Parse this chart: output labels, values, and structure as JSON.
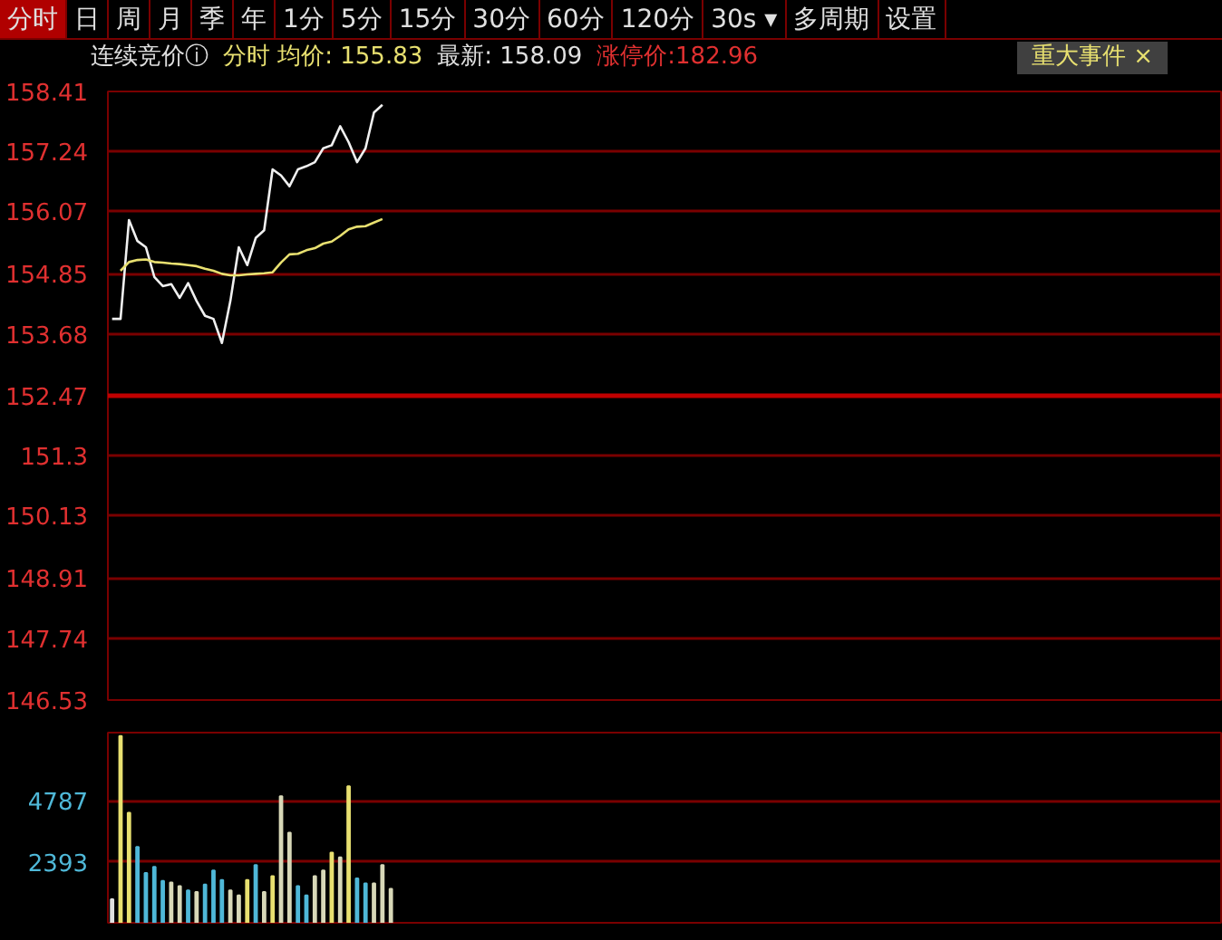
{
  "chart_data": [
    {
      "type": "line",
      "annotations": [
        "分时",
        "日",
        "周",
        "月",
        "季",
        "年",
        "1分",
        "5分",
        "15分",
        "30分",
        "60分",
        "120分",
        "30s ▾",
        "多周期",
        "设置",
        "连续竞价ⓘ",
        "分时 均价: 155.83",
        "最新: 158.09",
        "涨停价:182.96",
        "重大事件 ×"
      ],
      "categories": [
        null,
        null,
        null,
        null,
        null,
        null,
        null,
        null,
        null,
        null,
        null,
        null,
        null,
        null,
        null,
        null,
        null,
        null,
        null,
        null,
        null,
        null,
        null,
        null,
        null,
        null,
        null,
        null,
        null,
        null,
        null,
        null,
        null,
        null,
        null,
        null,
        null,
        null,
        null,
        null,
        null,
        null,
        null,
        null,
        null,
        null,
        null,
        null,
        null,
        null,
        null,
        null,
        null,
        null,
        null,
        null,
        null,
        null,
        null,
        null,
        null,
        null,
        null,
        null,
        null,
        null,
        null,
        null,
        null,
        null,
        null,
        null,
        null,
        null,
        null,
        null,
        null,
        null,
        null,
        null,
        null,
        null,
        null,
        null,
        null,
        null,
        null,
        null,
        null,
        null,
        null,
        null,
        null,
        null,
        null,
        null,
        null,
        null,
        null,
        null,
        null,
        null,
        null,
        null,
        null,
        null,
        null,
        null,
        null,
        null,
        null,
        null,
        null,
        null,
        null,
        null,
        null,
        null,
        null,
        null,
        null,
        null,
        null,
        null,
        null,
        null,
        null,
        null,
        null,
        null,
        null,
        null
      ],
      "series": [
        {
          "color": "#f0f0f0",
          "values": [
            153.97,
            153.97,
            155.9,
            155.49,
            155.37,
            154.79,
            154.61,
            154.65,
            154.38,
            154.67,
            154.32,
            154.03,
            153.97,
            153.5,
            154.32,
            155.37,
            155.02,
            155.55,
            155.7,
            156.89,
            156.77,
            156.56,
            156.89,
            156.95,
            157.03,
            157.3,
            157.36,
            157.73,
            157.42,
            157.03,
            157.3,
            158.0,
            158.15,
            null,
            null,
            null,
            null,
            null,
            null,
            null,
            null,
            null,
            null,
            null,
            null,
            null,
            null,
            null,
            null,
            null,
            null,
            null,
            null,
            null,
            null,
            null,
            null,
            null,
            null,
            null,
            null,
            null,
            null,
            null,
            null,
            null,
            null,
            null,
            null,
            null,
            null,
            null,
            null,
            null,
            null,
            null,
            null,
            null,
            null,
            null,
            null,
            null,
            null,
            null,
            null,
            null,
            null,
            null,
            null,
            null,
            null,
            null,
            null,
            null,
            null,
            null,
            null,
            null,
            null,
            null,
            null,
            null,
            null,
            null,
            null,
            null,
            null,
            null,
            null,
            null,
            null,
            null,
            null,
            null,
            null,
            null,
            null,
            null,
            null,
            null,
            null,
            null,
            null,
            null,
            null,
            null,
            null,
            null,
            null,
            null,
            null,
            null
          ]
        },
        {
          "color": "#e8e070",
          "values": [
            null,
            154.91,
            155.08,
            155.12,
            155.13,
            155.08,
            155.07,
            155.05,
            155.04,
            155.02,
            155.0,
            154.95,
            154.91,
            154.85,
            154.82,
            154.82,
            154.84,
            154.85,
            154.86,
            154.88,
            155.07,
            155.23,
            155.24,
            155.31,
            155.35,
            155.44,
            155.48,
            155.59,
            155.72,
            155.77,
            155.78,
            155.85,
            155.92,
            null,
            null,
            null,
            null,
            null,
            null,
            null,
            null,
            null,
            null,
            null,
            null,
            null,
            null,
            null,
            null,
            null,
            null,
            null,
            null,
            null,
            null,
            null,
            null,
            null,
            null,
            null,
            null,
            null,
            null,
            null,
            null,
            null,
            null,
            null,
            null,
            null,
            null,
            null,
            null,
            null,
            null,
            null,
            null,
            null,
            null,
            null,
            null,
            null,
            null,
            null,
            null,
            null,
            null,
            null,
            null,
            null,
            null,
            null,
            null,
            null,
            null,
            null,
            null,
            null,
            null,
            null,
            null,
            null,
            null,
            null,
            null,
            null,
            null,
            null,
            null,
            null,
            null,
            null,
            null,
            null,
            null,
            null,
            null,
            null,
            null,
            null,
            null,
            null,
            null,
            null,
            null,
            null,
            null,
            null,
            null,
            null,
            null,
            null
          ]
        }
      ],
      "ylim": [
        146.53,
        158.41
      ],
      "yticks": [
        146.53,
        147.74,
        148.91,
        150.13,
        151.3,
        152.47,
        153.68,
        154.85,
        156.07,
        157.24,
        158.41
      ],
      "ref_lines": [
        {
          "axis": "y",
          "value": 152.47,
          "color": "#c00000",
          "line_style": "solid"
        }
      ],
      "grid": "y",
      "tick_labels": "y",
      "line_style": "solid"
    },
    {
      "type": "bar",
      "categories": [
        null,
        null,
        null,
        null,
        null,
        null,
        null,
        null,
        null,
        null,
        null,
        null,
        null,
        null,
        null,
        null,
        null,
        null,
        null,
        null,
        null,
        null,
        null,
        null,
        null,
        null,
        null,
        null,
        null,
        null,
        null,
        null,
        null,
        null,
        null,
        null,
        null,
        null,
        null,
        null,
        null,
        null,
        null,
        null,
        null,
        null,
        null,
        null,
        null,
        null,
        null,
        null,
        null,
        null,
        null,
        null,
        null,
        null,
        null,
        null,
        null,
        null,
        null,
        null,
        null,
        null,
        null,
        null,
        null,
        null,
        null,
        null,
        null,
        null,
        null,
        null,
        null,
        null,
        null,
        null,
        null,
        null,
        null,
        null,
        null,
        null,
        null,
        null,
        null,
        null,
        null,
        null,
        null,
        null,
        null,
        null,
        null,
        null,
        null,
        null,
        null,
        null,
        null,
        null,
        null,
        null,
        null,
        null,
        null,
        null,
        null,
        null,
        null,
        null,
        null,
        null,
        null,
        null,
        null,
        null,
        null,
        null,
        null,
        null,
        null,
        null,
        null,
        null,
        null,
        null,
        null,
        null
      ],
      "values": [
        920,
        7320,
        4310,
        2970,
        1950,
        2190,
        1640,
        1580,
        1440,
        1270,
        1210,
        1500,
        2050,
        1680,
        1270,
        1070,
        1680,
        2260,
        1210,
        1830,
        4960,
        3530,
        1440,
        1070,
        1830,
        2050,
        2750,
        2560,
        5350,
        1740,
        1540,
        1540,
        2260,
        1330,
        null,
        null,
        null,
        null,
        null,
        null,
        null,
        null,
        null,
        null,
        null,
        null,
        null,
        null,
        null,
        null,
        null,
        null,
        null,
        null,
        null,
        null,
        null,
        null,
        null,
        null,
        null,
        null,
        null,
        null,
        null,
        null,
        null,
        null,
        null,
        null,
        null,
        null,
        null,
        null,
        null,
        null,
        null,
        null,
        null,
        null,
        null,
        null,
        null,
        null,
        null,
        null,
        null,
        null,
        null,
        null,
        null,
        null,
        null,
        null,
        null,
        null,
        null,
        null,
        null,
        null,
        null,
        null,
        null,
        null,
        null,
        null,
        null,
        null,
        null,
        null,
        null,
        null,
        null,
        null,
        null,
        null,
        null,
        null,
        null,
        null,
        null,
        null,
        null,
        null,
        null,
        null,
        null,
        null,
        null,
        null,
        null,
        null
      ],
      "colors": [
        "#e0e0e0",
        "#e8e070",
        "#e8e070",
        "#4fb8d8",
        "#4fb8d8",
        "#4fb8d8",
        "#4fb8d8",
        "#d8d8b8",
        "#d8d8b8",
        "#4fb8d8",
        "#d8d8b8",
        "#4fb8d8",
        "#4fb8d8",
        "#4fb8d8",
        "#d8d8b8",
        "#d8d8b8",
        "#e8e070",
        "#4fb8d8",
        "#d8d8b8",
        "#e8e070",
        "#d8d8b8",
        "#d8d8b8",
        "#4fb8d8",
        "#4fb8d8",
        "#d8d8b8",
        "#d8d8b8",
        "#e8e070",
        "#d8d8b8",
        "#e8e070",
        "#4fb8d8",
        "#4fb8d8",
        "#d8d8b8",
        "#d8d8b8",
        "#d8d8b8",
        null,
        null,
        null,
        null,
        null,
        null,
        null,
        null,
        null,
        null,
        null,
        null,
        null,
        null,
        null,
        null,
        null,
        null,
        null,
        null,
        null,
        null,
        null,
        null,
        null,
        null,
        null,
        null,
        null,
        null,
        null,
        null,
        null,
        null,
        null,
        null,
        null,
        null,
        null,
        null,
        null,
        null,
        null,
        null,
        null,
        null,
        null,
        null,
        null,
        null,
        null,
        null,
        null,
        null,
        null,
        null,
        null,
        null,
        null,
        null,
        null,
        null,
        null,
        null,
        null,
        null,
        null,
        null,
        null,
        null,
        null,
        null,
        null,
        null,
        null,
        null,
        null,
        null,
        null,
        null,
        null,
        null,
        null,
        null,
        null,
        null,
        null,
        null,
        null,
        null,
        null,
        null,
        null,
        null,
        null,
        null,
        null,
        null
      ],
      "ylim": [
        0,
        7450
      ],
      "yticks": [
        2393,
        4787
      ],
      "grid": "y",
      "tick_labels": "y"
    }
  ]
}
